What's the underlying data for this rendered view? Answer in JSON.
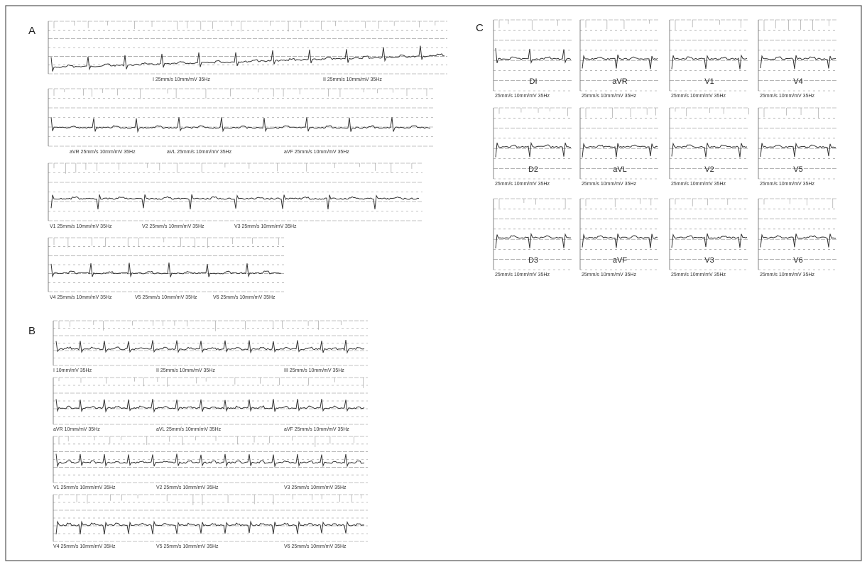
{
  "panels": [
    {
      "label": "A",
      "strips": [
        {
          "footers": [
            "I 25mm/s 10mm/mV 35Hz",
            "II 25mm/s 10mm/mV 35Hz"
          ]
        },
        {
          "footers": [
            "aVR 25mm/s 10mm/mV 35Hz",
            "aVL 25mm/s 10mm/mV 35Hz",
            "aVF 25mm/s 10mm/mV 35Hz"
          ]
        },
        {
          "footers": [
            "V1 25mm/s 10mm/mV 35Hz",
            "V2 25mm/s 10mm/mV 35Hz",
            "V3 25mm/s 10mm/mV 35Hz"
          ]
        },
        {
          "footers": [
            "V4 25mm/s 10mm/mV 35Hz",
            "V5 25mm/s 10mm/mV 35Hz",
            "V6 25mm/s 10mm/mV 35Hz"
          ]
        }
      ]
    },
    {
      "label": "B",
      "strips": [
        {
          "footers": [
            "I 10mm/mV 35Hz",
            "II 25mm/s 10mm/mV 35Hz",
            "III 25mm/s 10mm/mV 35Hz"
          ]
        },
        {
          "footers": [
            "aVR 10mm/mV 35Hz",
            "aVL 25mm/s 10mm/mV 35Hz",
            "aVF 25mm/s 10mm/mV 35Hz"
          ]
        },
        {
          "footers": [
            "V1 25mm/s 10mm/mV 35Hz",
            "V2 25mm/s 10mm/mV 35Hz",
            "V3 25mm/s 10mm/mV 35Hz"
          ]
        },
        {
          "footers": [
            "V4 25mm/s 10mm/mV 35Hz",
            "V5 25mm/s 10mm/mV 35Hz",
            "V6 25mm/s 10mm/mV 35Hz"
          ]
        }
      ]
    },
    {
      "label": "C",
      "leads": [
        {
          "name": "DI",
          "footer": "25mm/s 10mm/mV 35Hz"
        },
        {
          "name": "aVR",
          "footer": "25mm/s 10mm/mV 35Hz"
        },
        {
          "name": "V1",
          "footer": "25mm/s 10mm/mV 35Hz"
        },
        {
          "name": "V4",
          "footer": "25mm/s 10mm/mV 35Hz"
        },
        {
          "name": "D2",
          "footer": "25mm/s 10mm/mV 35Hz"
        },
        {
          "name": "aVL",
          "footer": "25mm/s 10mm/mV 35Hz"
        },
        {
          "name": "V2",
          "footer": "25mm/s 10mm/mV 35Hz"
        },
        {
          "name": "V5",
          "footer": "25mm/s 10mm/mV 35Hz"
        },
        {
          "name": "D3",
          "footer": "25mm/s 10mm/mV 35Hz"
        },
        {
          "name": "aVF",
          "footer": "25mm/s 10mm/mV 35Hz"
        },
        {
          "name": "V3",
          "footer": "25mm/s 10mm/mV 35Hz"
        },
        {
          "name": "V6",
          "footer": "25mm/s 10mm/mV 35Hz"
        }
      ]
    }
  ]
}
